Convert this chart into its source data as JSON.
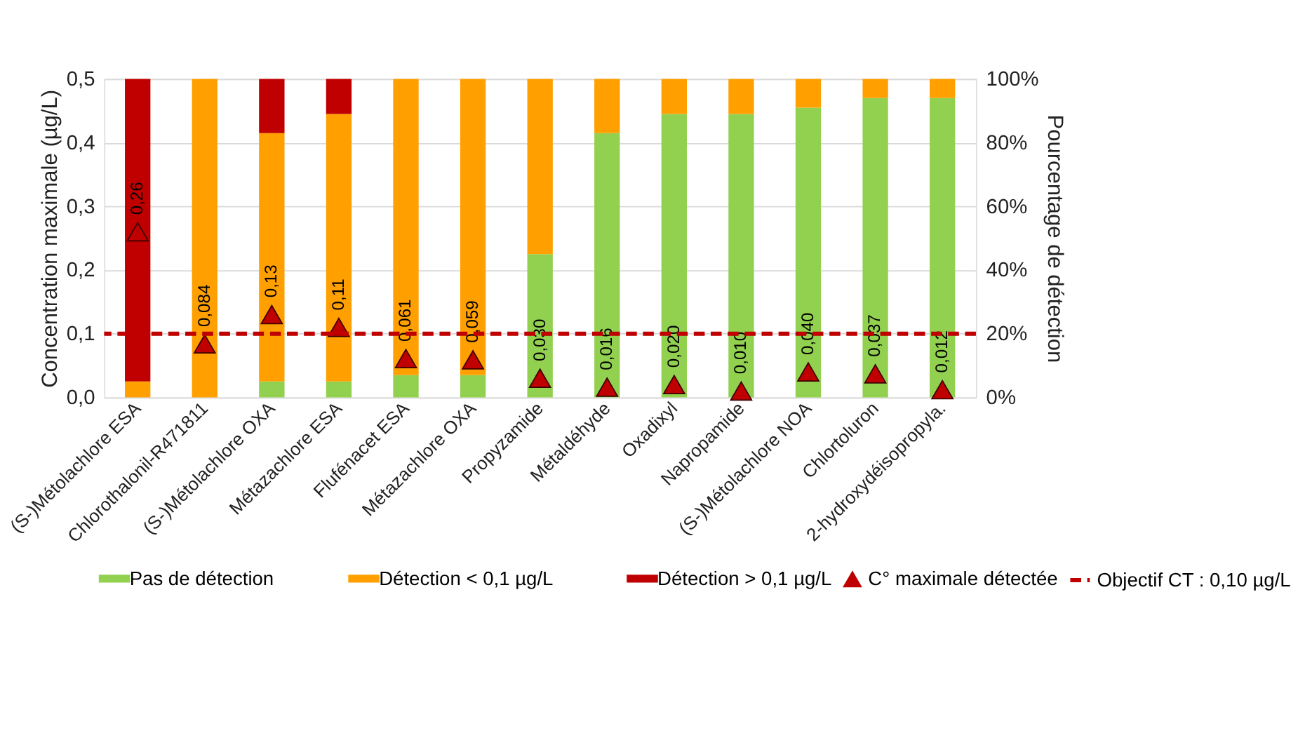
{
  "chart_data": {
    "type": "bar",
    "stacked": true,
    "legend": "bottom",
    "grid": "y",
    "categories": [
      "(S-)Métolachlore ESA",
      "Chlorothalonil-R471811",
      "(S-)Métolachlore OXA",
      "Métazachlore ESA",
      "Flufénacet ESA",
      "Métazachlore OXA",
      "Propyzamide",
      "Métaldéhyde",
      "Oxadixyl",
      "Napropamide",
      "(S-)Métolachlore NOA",
      "Chlortoluron",
      "2-hydroxydéisopropyla."
    ],
    "ylabel": "Concentration maximale (µg/L)",
    "y2label": "Pourcentage de détection",
    "ylim": [
      0,
      0.5
    ],
    "yticks": [
      {
        "value": 0,
        "label": "0,0"
      },
      {
        "value": 0.1,
        "label": "0,1"
      },
      {
        "value": 0.2,
        "label": "0,2"
      },
      {
        "value": 0.3,
        "label": "0,3"
      },
      {
        "value": 0.4,
        "label": "0,4"
      },
      {
        "value": 0.5,
        "label": "0,5"
      }
    ],
    "y2lim": [
      0,
      100
    ],
    "y2ticks": [
      {
        "value": 0,
        "label": "0%"
      },
      {
        "value": 20,
        "label": "20%"
      },
      {
        "value": 40,
        "label": "40%"
      },
      {
        "value": 60,
        "label": "60%"
      },
      {
        "value": 80,
        "label": "80%"
      },
      {
        "value": 100,
        "label": "100%"
      }
    ],
    "series": [
      {
        "name": "Pas de détection",
        "color": "#92d050",
        "axis": "y2",
        "values": [
          0,
          0,
          5,
          5,
          7,
          7,
          45,
          83,
          89,
          89,
          91,
          94,
          94
        ]
      },
      {
        "name": "Détection < 0,1 µg/L",
        "color": "#ffa000",
        "axis": "y2",
        "values": [
          5,
          100,
          78,
          84,
          93,
          93,
          55,
          17,
          11,
          11,
          9,
          6,
          6
        ]
      },
      {
        "name": "Détection > 0,1 µg/L",
        "color": "#c00000",
        "axis": "y2",
        "values": [
          95,
          0,
          17,
          11,
          0,
          0,
          0,
          0,
          0,
          0,
          0,
          0,
          0
        ]
      },
      {
        "name": "C° maximale détectée",
        "color": "#c00000",
        "type": "scatter",
        "marker": "triangle",
        "values": [
          0.26,
          0.084,
          0.13,
          0.11,
          0.061,
          0.059,
          0.03,
          0.016,
          0.02,
          0.01,
          0.04,
          0.037,
          0.012
        ],
        "value_labels": [
          "0,26",
          "0,084",
          "0,13",
          "0,11",
          "0,061",
          "0,059",
          "0,030",
          "0,016",
          "0,020",
          "0,010",
          "0,040",
          "0,037",
          "0,012"
        ]
      }
    ],
    "ref_lines": [
      {
        "axis": "y",
        "value": 0.1,
        "label": "Objectif CT : 0,10 µg/L",
        "color": "#c00000",
        "line_style": "dashed"
      }
    ]
  }
}
